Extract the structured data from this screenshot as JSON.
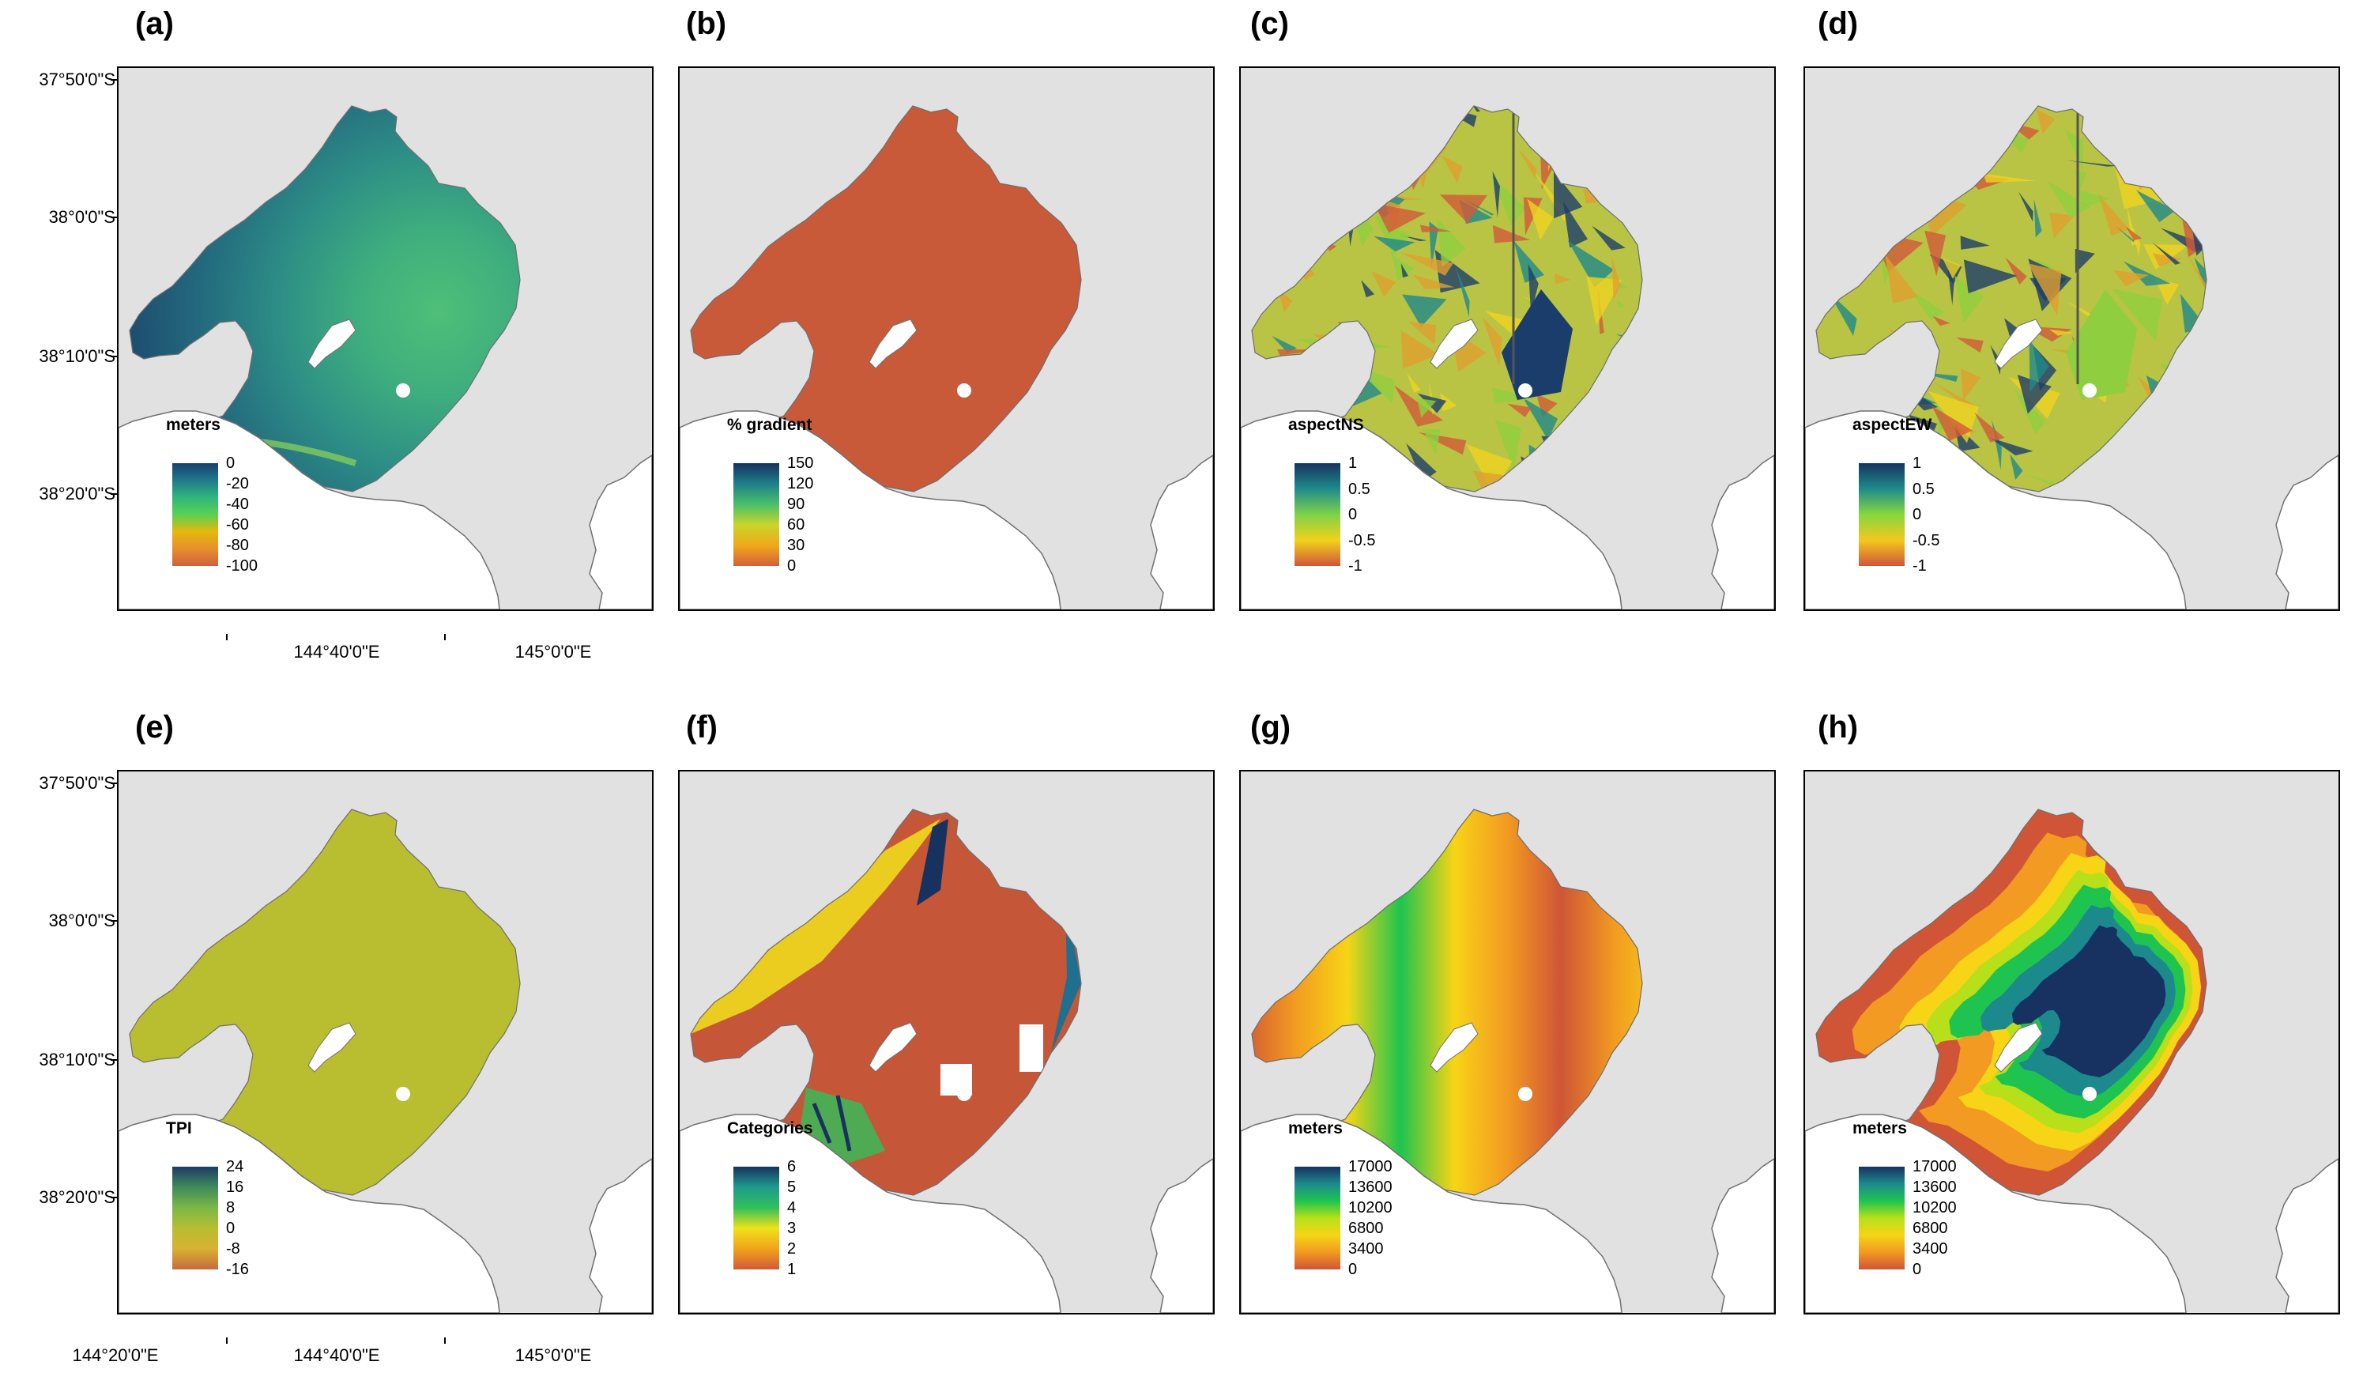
{
  "colors": {
    "background": "#e1e1e1",
    "land": "#ffffff",
    "coast": "#707070",
    "uniform_gradient": "#c85a3a",
    "uniform_tpi": "#b8be30",
    "category_base": "#c65638"
  },
  "latitudes": [
    "37°50'0\"S",
    "38°0'0\"S",
    "38°10'0\"S",
    "38°20'0\"S"
  ],
  "longitudes_top": [
    "144°40'0\"E",
    "145°0'0\"E"
  ],
  "longitudes_bottom": [
    "144°20'0\"E",
    "144°40'0\"E",
    "145°0'0\"E"
  ],
  "panels": [
    {
      "label": "(a)",
      "legend_title": "meters",
      "ticks": [
        "0",
        "-20",
        "-40",
        "-60",
        "-80",
        "-100"
      ],
      "ramp": [
        "#1a3f6e",
        "#1f7a8c",
        "#2fb67c",
        "#5ad153",
        "#e6b80e",
        "#e88f2c",
        "#d0603e"
      ],
      "style": "bathymetry"
    },
    {
      "label": "(b)",
      "legend_title": "% gradient",
      "ticks": [
        "150",
        "120",
        "90",
        "60",
        "30",
        "0"
      ],
      "ramp": [
        "#16305e",
        "#1f7f8a",
        "#49c06a",
        "#c8d52a",
        "#f1a91a",
        "#d35f3b"
      ],
      "style": "uniform-gradient"
    },
    {
      "label": "(c)",
      "legend_title": "aspectNS",
      "ticks": [
        "1",
        "0.5",
        "0",
        "-0.5",
        "-1"
      ],
      "ramp": [
        "#18345f",
        "#1e8b8b",
        "#7fd24a",
        "#f2d21a",
        "#d0563a"
      ],
      "style": "aspect"
    },
    {
      "label": "(d)",
      "legend_title": "aspectEW",
      "ticks": [
        "1",
        "0.5",
        "0",
        "-0.5",
        "-1"
      ],
      "ramp": [
        "#18345f",
        "#1e8b8b",
        "#86d83c",
        "#f4c71d",
        "#d0563a"
      ],
      "style": "aspect"
    },
    {
      "label": "(e)",
      "legend_title": "TPI",
      "ticks": [
        "24",
        "16",
        "8",
        "0",
        "-8",
        "-16"
      ],
      "ramp": [
        "#1d3c6a",
        "#3f8a5a",
        "#7ab845",
        "#b8be30",
        "#d7b132",
        "#c86a3f"
      ],
      "style": "uniform-tpi"
    },
    {
      "label": "(f)",
      "legend_title": "Categories",
      "ticks": [
        "6",
        "5",
        "4",
        "3",
        "2",
        "1"
      ],
      "ramp": [
        "#17325e",
        "#1f9a8e",
        "#2fc05a",
        "#f0e21a",
        "#f1a21a",
        "#d15a38"
      ],
      "style": "categories"
    },
    {
      "label": "(g)",
      "legend_title": "meters",
      "ticks": [
        "17000",
        "13600",
        "10200",
        "6800",
        "3400",
        "0"
      ],
      "ramp": [
        "#173161",
        "#1c8a8d",
        "#1ec44f",
        "#b7e01a",
        "#f7d416",
        "#f29a21",
        "#cf5536"
      ],
      "style": "distance-ew"
    },
    {
      "label": "(h)",
      "legend_title": "meters",
      "ticks": [
        "17000",
        "13600",
        "10200",
        "6800",
        "3400",
        "0"
      ],
      "ramp": [
        "#173161",
        "#1c8a8d",
        "#1ec44f",
        "#b7e01a",
        "#f7d416",
        "#f29a21",
        "#cf5536"
      ],
      "style": "distance-coast"
    }
  ]
}
